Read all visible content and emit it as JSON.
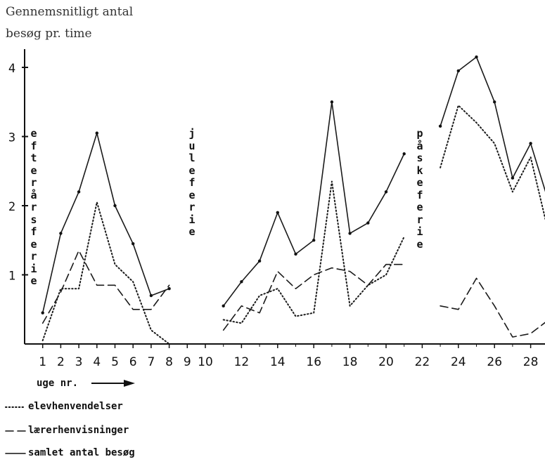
{
  "chart_data": {
    "type": "line",
    "ylabel": [
      "Gennemsnitligt antal",
      "besøg pr. time"
    ],
    "xlabel": "uge nr.",
    "ylim": [
      0,
      4.1
    ],
    "xlim": [
      0,
      30
    ],
    "y_ticks": [
      "1",
      "2",
      "3",
      "4"
    ],
    "x_ticks": [
      "1",
      "2",
      "3",
      "4",
      "5",
      "6",
      "7",
      "8",
      "9",
      "10",
      "12",
      "14",
      "16",
      "18",
      "20",
      "22",
      "24",
      "26",
      "28"
    ],
    "grid": false,
    "holidays": [
      {
        "name": "efterårsferie",
        "letters": [
          "e",
          "f",
          "t",
          "e",
          "r",
          "å",
          "r",
          "s",
          "f",
          "e",
          "r",
          "i",
          "e"
        ]
      },
      {
        "name": "juleferie",
        "letters": [
          "j",
          "u",
          "l",
          "e",
          "f",
          "e",
          "r",
          "i",
          "e"
        ]
      },
      {
        "name": "påskeferie",
        "letters": [
          "p",
          "å",
          "s",
          "k",
          "e",
          "f",
          "e",
          "r",
          "i",
          "e"
        ]
      }
    ],
    "series": [
      {
        "name": "elevhenvendelser",
        "style": "dotted",
        "segments": [
          {
            "x": [
              1,
              2,
              3,
              4,
              5,
              6,
              7,
              8
            ],
            "y": [
              0.05,
              0.8,
              0.8,
              2.05,
              1.15,
              0.9,
              0.2,
              -0.05
            ]
          },
          {
            "x": [
              11,
              12,
              13,
              14,
              15,
              16,
              17,
              18,
              19,
              20,
              21
            ],
            "y": [
              0.35,
              0.3,
              0.7,
              0.8,
              0.4,
              0.45,
              2.35,
              0.55,
              0.85,
              1.0,
              1.55
            ]
          },
          {
            "x": [
              23,
              24,
              25,
              26,
              27,
              28,
              29
            ],
            "y": [
              2.55,
              3.45,
              3.2,
              2.9,
              2.2,
              2.7,
              1.6
            ]
          }
        ]
      },
      {
        "name": "lærerhenvisninger",
        "style": "dashed",
        "segments": [
          {
            "x": [
              1,
              2,
              3,
              4,
              5,
              6,
              7,
              8
            ],
            "y": [
              0.3,
              0.75,
              1.35,
              0.85,
              0.85,
              0.5,
              0.5,
              0.85
            ]
          },
          {
            "x": [
              11,
              12,
              13,
              14,
              15,
              16,
              17,
              18,
              19,
              20,
              21
            ],
            "y": [
              0.2,
              0.55,
              0.45,
              1.05,
              0.8,
              1.0,
              1.1,
              1.05,
              0.85,
              1.15,
              1.15
            ]
          },
          {
            "x": [
              23,
              24,
              25,
              26,
              27,
              28,
              29
            ],
            "y": [
              0.55,
              0.5,
              0.95,
              0.55,
              0.1,
              0.15,
              0.35
            ]
          }
        ]
      },
      {
        "name": "samlet antal besøg",
        "style": "solid",
        "segments": [
          {
            "x": [
              1,
              2,
              3,
              4,
              5,
              6,
              7,
              8
            ],
            "y": [
              0.45,
              1.6,
              2.2,
              3.05,
              2.0,
              1.45,
              0.7,
              0.8
            ]
          },
          {
            "x": [
              11,
              12,
              13,
              14,
              15,
              16,
              17,
              18,
              19,
              20,
              21
            ],
            "y": [
              0.55,
              0.9,
              1.2,
              1.9,
              1.3,
              1.5,
              3.5,
              1.6,
              1.75,
              2.2,
              2.75
            ]
          },
          {
            "x": [
              23,
              24,
              25,
              26,
              27,
              28,
              29
            ],
            "y": [
              3.15,
              3.95,
              4.15,
              3.5,
              2.4,
              2.9,
              2.05
            ]
          }
        ]
      }
    ],
    "legend": [
      {
        "text": "elevhenvendelser",
        "style": "dotted"
      },
      {
        "text": "lærerhenvisninger",
        "style": "dashed"
      },
      {
        "text": "samlet antal besøg",
        "style": "solid"
      }
    ]
  }
}
